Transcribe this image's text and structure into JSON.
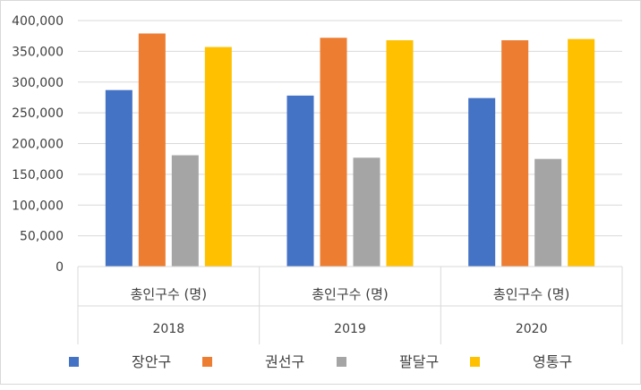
{
  "chart_data": {
    "type": "bar",
    "categories": [
      {
        "label": "총인구수 (명)",
        "group": "2018"
      },
      {
        "label": "총인구수 (명)",
        "group": "2019"
      },
      {
        "label": "총인구수 (명)",
        "group": "2020"
      }
    ],
    "series": [
      {
        "name": "장안구",
        "color": "#4472C4",
        "values": [
          287000,
          278000,
          274000
        ]
      },
      {
        "name": "권선구",
        "color": "#ED7D31",
        "values": [
          379000,
          372000,
          368000
        ]
      },
      {
        "name": "팔달구",
        "color": "#A5A5A5",
        "values": [
          181000,
          177000,
          175000
        ]
      },
      {
        "name": "영통구",
        "color": "#FFC000",
        "values": [
          357000,
          368000,
          370000
        ]
      }
    ],
    "ylim": [
      0,
      400000
    ],
    "yticks": [
      "0",
      "50,000",
      "100,000",
      "150,000",
      "200,000",
      "250,000",
      "300,000",
      "350,000",
      "400,000"
    ],
    "grid": true,
    "legend": "bottom"
  }
}
